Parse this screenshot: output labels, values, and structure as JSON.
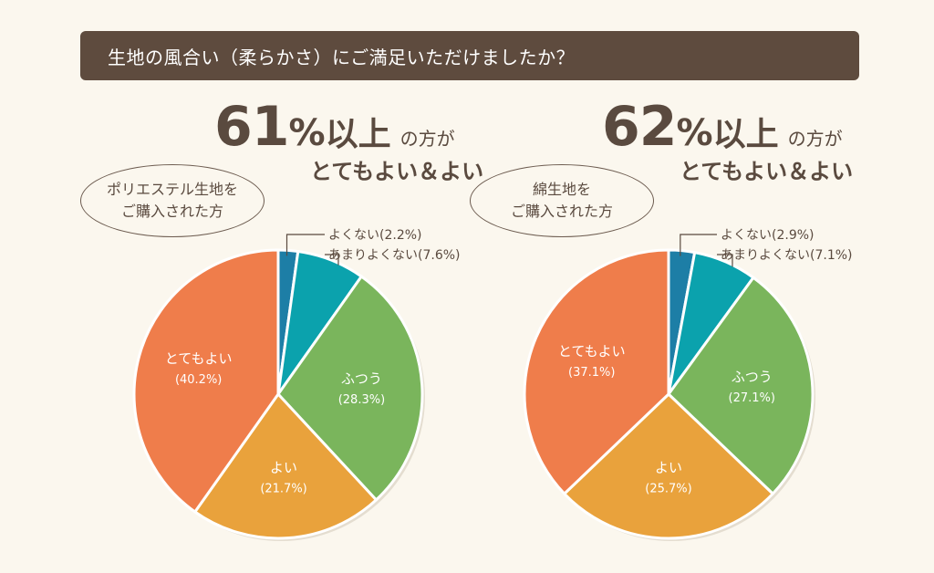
{
  "question": "生地の風合い（柔らかさ）にご満足いただけましたか？",
  "colors": {
    "banner_bg": "#5e4b3e",
    "page_bg": "#fbf7ee",
    "text": "#5a4a3f",
    "とてもよい": "#ef7d4b",
    "よい": "#e9a23c",
    "ふつう": "#7ab55c",
    "あまりよくない": "#0ba2ad",
    "よくない": "#1d7ea6"
  },
  "panels": [
    {
      "headline_number": "61",
      "headline_percent": "%",
      "headline_ijo": "以上",
      "headline_note": "の方が",
      "subheadline": "とてもよい＆よい",
      "bubble_line1": "ポリエステル生地を",
      "bubble_line2": "ご購入された方"
    },
    {
      "headline_number": "62",
      "headline_percent": "%",
      "headline_ijo": "以上",
      "headline_note": "の方が",
      "subheadline": "とてもよい＆よい",
      "bubble_line1": "綿生地を",
      "bubble_line2": "ご購入された方"
    }
  ],
  "chart_data": [
    {
      "type": "pie",
      "slices": [
        {
          "label": "よくない",
          "value": 2.2,
          "display": "(2.2%)",
          "color": "#1d7ea6",
          "callout": true
        },
        {
          "label": "あまりよくない",
          "value": 7.6,
          "display": "(7.6%)",
          "color": "#0ba2ad",
          "callout": true
        },
        {
          "label": "ふつう",
          "value": 28.3,
          "display": "(28.3%)",
          "color": "#7ab55c",
          "callout": false
        },
        {
          "label": "よい",
          "value": 21.7,
          "display": "(21.7%)",
          "color": "#e9a23c",
          "callout": false
        },
        {
          "label": "とてもよい",
          "value": 40.2,
          "display": "(40.2%)",
          "color": "#ef7d4b",
          "callout": false
        }
      ]
    },
    {
      "type": "pie",
      "slices": [
        {
          "label": "よくない",
          "value": 2.9,
          "display": "(2.9%)",
          "color": "#1d7ea6",
          "callout": true
        },
        {
          "label": "あまりよくない",
          "value": 7.1,
          "display": "(7.1%)",
          "color": "#0ba2ad",
          "callout": true
        },
        {
          "label": "ふつう",
          "value": 27.1,
          "display": "(27.1%)",
          "color": "#7ab55c",
          "callout": false
        },
        {
          "label": "よい",
          "value": 25.7,
          "display": "(25.7%)",
          "color": "#e9a23c",
          "callout": false
        },
        {
          "label": "とてもよい",
          "value": 37.1,
          "display": "(37.1%)",
          "color": "#ef7d4b",
          "callout": false
        }
      ]
    }
  ]
}
